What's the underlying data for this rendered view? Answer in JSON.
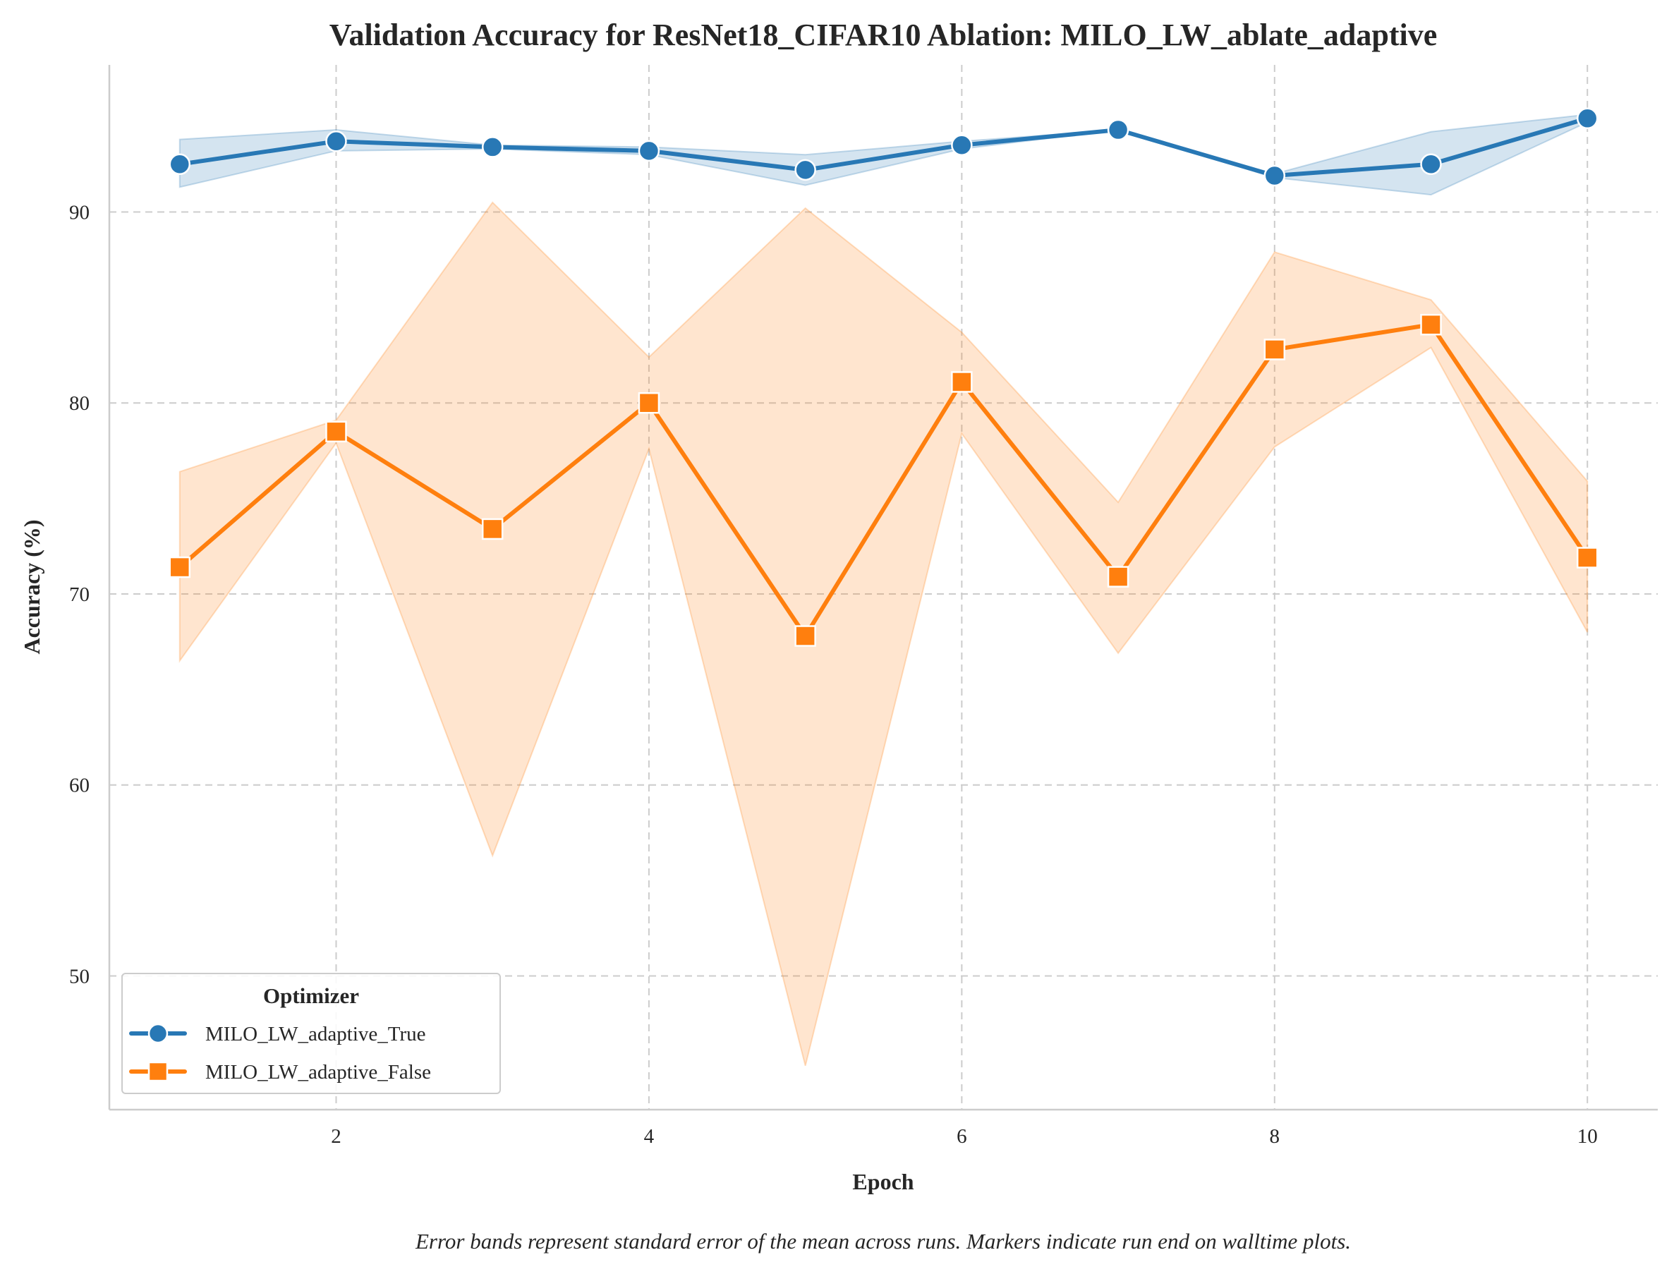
{
  "chart_data": {
    "type": "line",
    "title": "Validation Accuracy for ResNet18_CIFAR10 Ablation: MILO_LW_ablate_adaptive",
    "xlabel": "Epoch",
    "ylabel": "Accuracy (%)",
    "x": [
      1,
      2,
      3,
      4,
      5,
      6,
      7,
      8,
      9,
      10
    ],
    "xlim": [
      0.55,
      10.45
    ],
    "ylim": [
      43.0,
      97.7
    ],
    "xticks": [
      2,
      4,
      6,
      8,
      10
    ],
    "yticks": [
      50,
      60,
      70,
      80,
      90
    ],
    "grid": true,
    "legend_title": "Optimizer",
    "legend_position": "lower-left",
    "series": [
      {
        "name": "MILO_LW_adaptive_True",
        "color": "#2878b5",
        "marker": "circle",
        "values": [
          92.5,
          93.7,
          93.4,
          93.2,
          92.2,
          93.5,
          94.3,
          91.9,
          92.5,
          94.9
        ],
        "band_lower": [
          91.3,
          93.2,
          93.3,
          93.0,
          91.4,
          93.3,
          94.3,
          91.8,
          90.9,
          94.7
        ],
        "band_upper": [
          93.8,
          94.3,
          93.5,
          93.4,
          93.0,
          93.7,
          94.3,
          92.0,
          94.2,
          95.1
        ]
      },
      {
        "name": "MILO_LW_adaptive_False",
        "color": "#ff7f0e",
        "marker": "square",
        "values": [
          71.4,
          78.5,
          73.4,
          80.0,
          67.8,
          81.1,
          70.9,
          82.8,
          84.1,
          71.9
        ],
        "band_lower": [
          66.5,
          77.9,
          56.3,
          77.6,
          45.3,
          78.4,
          66.9,
          77.7,
          82.9,
          68.0
        ],
        "band_upper": [
          76.4,
          79.1,
          90.5,
          82.4,
          90.2,
          83.7,
          74.8,
          87.9,
          85.4,
          75.9
        ]
      }
    ]
  },
  "caption": "Error bands represent standard error of the mean across runs. Markers indicate run end on walltime plots."
}
